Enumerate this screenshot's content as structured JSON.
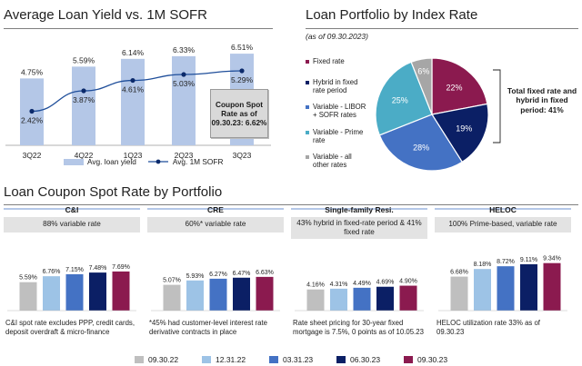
{
  "colors": {
    "light_blue": "#b4c7e7",
    "line_blue": "#1f4e9a",
    "grey": "#bfbfbf",
    "pale_blue": "#9dc3e6",
    "mid_blue": "#4472c4",
    "navy": "#0b1f65",
    "maroon": "#8b1a4f",
    "teal": "#4bacc6",
    "pie_grey": "#a6a6a6",
    "header_grey": "#e3e3e3"
  },
  "avg_yield": {
    "title": "Average Loan Yield vs. 1M SOFR",
    "callout": "Coupon Spot Rate as of 09.30.23: 6.62%",
    "legend_yield": "Avg. loan yield",
    "legend_sofr": "Avg. 1M SOFR"
  },
  "pie": {
    "title": "Loan Portfolio by Index Rate",
    "subtitle": "(as of 09.30.2023)",
    "legend": [
      {
        "label": "Fixed rate",
        "color": "#8b1a4f"
      },
      {
        "label": "Hybrid in fixed rate period",
        "color": "#0b1f65"
      },
      {
        "label": "Variable - LIBOR + SOFR rates",
        "color": "#4472c4"
      },
      {
        "label": "Variable - Prime rate",
        "color": "#4bacc6"
      },
      {
        "label": "Variable - all other rates",
        "color": "#a6a6a6"
      }
    ],
    "callout": "Total fixed rate and hybrid in fixed period: 41%"
  },
  "coupon": {
    "title": "Loan Coupon Spot Rate by Portfolio",
    "legend": [
      {
        "label": "09.30.22",
        "color": "#bfbfbf"
      },
      {
        "label": "12.31.22",
        "color": "#9dc3e6"
      },
      {
        "label": "03.31.23",
        "color": "#4472c4"
      },
      {
        "label": "06.30.23",
        "color": "#0b1f65"
      },
      {
        "label": "09.30.23",
        "color": "#8b1a4f"
      }
    ],
    "panels": [
      {
        "name": "C&I",
        "sub": "88% variable rate",
        "note": "C&I spot rate excludes PPP, credit cards, deposit overdraft & micro-finance"
      },
      {
        "name": "CRE",
        "sub": "60%* variable rate",
        "note": "*45% had customer-level interest rate derivative contracts in place"
      },
      {
        "name": "Single-family Resi.",
        "sub": "43% hybrid in fixed-rate period & 41% fixed rate",
        "note": "Rate sheet pricing for 30-year fixed mortgage is 7.5%, 0 points as of 10.05.23"
      },
      {
        "name": "HELOC",
        "sub": "100% Prime-based, variable rate",
        "note": "HELOC utilization rate 33% as of 09.30.23"
      }
    ]
  },
  "chart_data": [
    {
      "type": "bar",
      "title": "Average Loan Yield vs. 1M SOFR",
      "categories": [
        "3Q22",
        "4Q22",
        "1Q23",
        "2Q23",
        "3Q23"
      ],
      "series": [
        {
          "name": "Avg. loan yield",
          "type": "bar",
          "values": [
            4.75,
            5.59,
            6.14,
            6.33,
            6.51
          ],
          "labels": [
            "4.75%",
            "5.59%",
            "6.14%",
            "6.33%",
            "6.51%"
          ]
        },
        {
          "name": "Avg. 1M SOFR",
          "type": "line",
          "values": [
            2.42,
            3.87,
            4.61,
            5.03,
            5.29
          ],
          "labels": [
            "2.42%",
            "3.87%",
            "4.61%",
            "5.03%",
            "5.29%"
          ]
        }
      ],
      "ylim": [
        0,
        7
      ]
    },
    {
      "type": "pie",
      "title": "Loan Portfolio by Index Rate",
      "categories": [
        "Fixed rate",
        "Hybrid in fixed rate period",
        "Variable - LIBOR + SOFR rates",
        "Variable - Prime rate",
        "Variable - all other rates"
      ],
      "values": [
        22,
        19,
        28,
        25,
        6
      ],
      "labels": [
        "22%",
        "19%",
        "28%",
        "25%",
        "6%"
      ]
    },
    {
      "type": "bar",
      "title": "Loan Coupon Spot Rate by Portfolio",
      "categories": [
        "C&I",
        "CRE",
        "Single-family Resi.",
        "HELOC"
      ],
      "series": [
        {
          "name": "09.30.22",
          "values": [
            5.59,
            5.07,
            4.16,
            6.68
          ],
          "labels": [
            "5.59%",
            "5.07%",
            "4.16%",
            "6.68%"
          ]
        },
        {
          "name": "12.31.22",
          "values": [
            6.76,
            5.93,
            4.31,
            8.18
          ],
          "labels": [
            "6.76%",
            "5.93%",
            "4.31%",
            "8.18%"
          ]
        },
        {
          "name": "03.31.23",
          "values": [
            7.15,
            6.27,
            4.49,
            8.72
          ],
          "labels": [
            "7.15%",
            "6.27%",
            "4.49%",
            "8.72%"
          ]
        },
        {
          "name": "06.30.23",
          "values": [
            7.48,
            6.47,
            4.69,
            9.11
          ],
          "labels": [
            "7.48%",
            "6.47%",
            "4.69%",
            "9.11%"
          ]
        },
        {
          "name": "09.30.23",
          "values": [
            7.69,
            6.63,
            4.9,
            9.34
          ],
          "labels": [
            "7.69%",
            "6.63%",
            "4.90%",
            "9.34%"
          ]
        }
      ]
    }
  ]
}
